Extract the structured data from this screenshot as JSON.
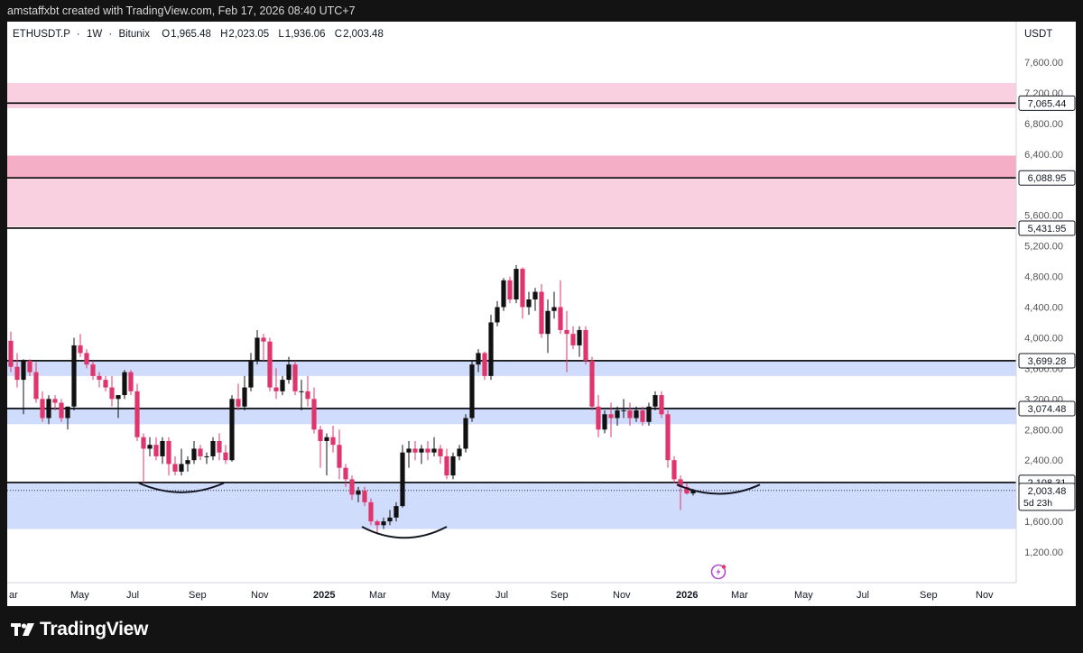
{
  "header": {
    "caption": "amstaffxbt created with TradingView.com, Feb 17, 2026 08:40 UTC+7"
  },
  "footer": {
    "brand": "TradingView",
    "logo_icon": "tradingview-logo-icon"
  },
  "chart_data": {
    "type": "candlestick",
    "symbol": "ETHUSDT.P",
    "interval": "1W",
    "exchange": "Bitunix",
    "ohlc_labels": {
      "o": "O",
      "h": "H",
      "l": "L",
      "c": "C"
    },
    "ohlc_values": {
      "o": "1,965.48",
      "h": "2,023.05",
      "l": "1,936.06",
      "c": "2,003.48"
    },
    "currency": "USDT",
    "y_axis": {
      "ticks": [
        "7,600.00",
        "7,200.00",
        "6,800.00",
        "6,400.00",
        "5,600.00",
        "5,200.00",
        "4,800.00",
        "4,400.00",
        "4,000.00",
        "3,600.00",
        "3,200.00",
        "2,800.00",
        "2,400.00",
        "1,600.00",
        "1,200.00"
      ],
      "tick_values": [
        7600,
        7200,
        6800,
        6400,
        5600,
        5200,
        4800,
        4400,
        4000,
        3600,
        3200,
        2800,
        2400,
        1600,
        1200
      ]
    },
    "x_axis": {
      "labels": [
        {
          "text": "ar",
          "bold": false
        },
        {
          "text": "May",
          "bold": false
        },
        {
          "text": "Jul",
          "bold": false
        },
        {
          "text": "Sep",
          "bold": false
        },
        {
          "text": "Nov",
          "bold": false
        },
        {
          "text": "2025",
          "bold": true
        },
        {
          "text": "Mar",
          "bold": false
        },
        {
          "text": "May",
          "bold": false
        },
        {
          "text": "Jul",
          "bold": false
        },
        {
          "text": "Sep",
          "bold": false
        },
        {
          "text": "Nov",
          "bold": false
        },
        {
          "text": "2026",
          "bold": true
        },
        {
          "text": "Mar",
          "bold": false
        },
        {
          "text": "May",
          "bold": false
        },
        {
          "text": "Jul",
          "bold": false
        },
        {
          "text": "Sep",
          "bold": false
        },
        {
          "text": "Nov",
          "bold": false
        }
      ]
    },
    "zones": [
      {
        "low": 7000,
        "high": 7330,
        "color": "#f8d0df"
      },
      {
        "low": 5450,
        "high": 6100,
        "color": "#f8d0df"
      },
      {
        "low": 6100,
        "high": 6380,
        "color": "#f4aec6"
      },
      {
        "low": 3500,
        "high": 3710,
        "color": "#cfdcfb"
      },
      {
        "low": 2870,
        "high": 3090,
        "color": "#cfdcfb"
      },
      {
        "low": 1500,
        "high": 2110,
        "color": "#cfdcfb"
      }
    ],
    "levels": [
      {
        "value": 7065.44,
        "label": "7,065.44"
      },
      {
        "value": 6088.95,
        "label": "6,088.95"
      },
      {
        "value": 5431.95,
        "label": "5,431.95"
      },
      {
        "value": 3699.28,
        "label": "3,699.28"
      },
      {
        "value": 3074.48,
        "label": "3,074.48"
      },
      {
        "value": 2108.31,
        "label": "2,108.31"
      }
    ],
    "last_price": {
      "value": 2003.48,
      "label": "2,003.48",
      "countdown": "5d 23h"
    },
    "colors": {
      "up": "#111111",
      "down": "#e0356c",
      "level": "#000000",
      "grid": "#e0e3eb",
      "axis_text": "#555555"
    },
    "candles": [
      [
        3960,
        4080,
        3550,
        3620
      ],
      [
        3620,
        3800,
        3350,
        3450
      ],
      [
        3450,
        3720,
        3000,
        3700
      ],
      [
        3700,
        3720,
        3500,
        3550
      ],
      [
        3550,
        3680,
        3150,
        3200
      ],
      [
        3200,
        3300,
        2900,
        2950
      ],
      [
        2950,
        3250,
        2870,
        3200
      ],
      [
        3200,
        3250,
        3050,
        3150
      ],
      [
        3150,
        3200,
        2900,
        2950
      ],
      [
        2950,
        3100,
        2800,
        3100
      ],
      [
        3100,
        4000,
        3050,
        3900
      ],
      [
        3900,
        4050,
        3750,
        3800
      ],
      [
        3800,
        3850,
        3600,
        3650
      ],
      [
        3650,
        3700,
        3450,
        3500
      ],
      [
        3500,
        3550,
        3350,
        3450
      ],
      [
        3450,
        3500,
        3300,
        3350
      ],
      [
        3350,
        3500,
        3100,
        3200
      ],
      [
        3200,
        3250,
        2950,
        3250
      ],
      [
        3250,
        3580,
        3200,
        3550
      ],
      [
        3550,
        3580,
        3250,
        3300
      ],
      [
        3300,
        3400,
        2650,
        2700
      ],
      [
        2700,
        2750,
        2100,
        2550
      ],
      [
        2550,
        2700,
        2450,
        2600
      ],
      [
        2600,
        2700,
        2400,
        2450
      ],
      [
        2450,
        2700,
        2350,
        2650
      ],
      [
        2650,
        2700,
        2200,
        2350
      ],
      [
        2350,
        2450,
        2200,
        2250
      ],
      [
        2250,
        2550,
        2200,
        2350
      ],
      [
        2350,
        2450,
        2250,
        2400
      ],
      [
        2400,
        2650,
        2350,
        2550
      ],
      [
        2550,
        2600,
        2400,
        2450
      ],
      [
        2450,
        2500,
        2350,
        2450
      ],
      [
        2450,
        2700,
        2400,
        2650
      ],
      [
        2650,
        2750,
        2400,
        2500
      ],
      [
        2500,
        2600,
        2350,
        2400
      ],
      [
        2400,
        3250,
        2380,
        3200
      ],
      [
        3200,
        3400,
        3050,
        3100
      ],
      [
        3100,
        3500,
        3050,
        3350
      ],
      [
        3350,
        3800,
        3300,
        3700
      ],
      [
        3700,
        4100,
        3650,
        4000
      ],
      [
        4000,
        4050,
        3700,
        3950
      ],
      [
        3950,
        4000,
        3300,
        3350
      ],
      [
        3350,
        3600,
        3200,
        3300
      ],
      [
        3300,
        3500,
        3250,
        3450
      ],
      [
        3450,
        3750,
        3400,
        3650
      ],
      [
        3650,
        3700,
        3250,
        3300
      ],
      [
        3300,
        3450,
        3050,
        3300
      ],
      [
        3300,
        3500,
        3100,
        3200
      ],
      [
        3200,
        3350,
        2750,
        2800
      ],
      [
        2800,
        2850,
        2300,
        2650
      ],
      [
        2650,
        2750,
        2200,
        2700
      ],
      [
        2700,
        2850,
        2500,
        2600
      ],
      [
        2600,
        2800,
        2150,
        2300
      ],
      [
        2300,
        2350,
        2050,
        2150
      ],
      [
        2150,
        2200,
        1880,
        1950
      ],
      [
        1950,
        2050,
        1850,
        2000
      ],
      [
        2000,
        2050,
        1800,
        1850
      ],
      [
        1850,
        1900,
        1550,
        1600
      ],
      [
        1600,
        1620,
        1450,
        1550
      ],
      [
        1550,
        1650,
        1500,
        1600
      ],
      [
        1600,
        1750,
        1550,
        1650
      ],
      [
        1650,
        1850,
        1600,
        1800
      ],
      [
        1800,
        2600,
        1780,
        2500
      ],
      [
        2500,
        2650,
        2300,
        2550
      ],
      [
        2550,
        2650,
        2400,
        2500
      ],
      [
        2500,
        2600,
        2350,
        2550
      ],
      [
        2550,
        2650,
        2400,
        2500
      ],
      [
        2500,
        2700,
        2450,
        2550
      ],
      [
        2550,
        2600,
        2350,
        2450
      ],
      [
        2450,
        2550,
        2150,
        2200
      ],
      [
        2200,
        2500,
        2150,
        2450
      ],
      [
        2450,
        2600,
        2400,
        2550
      ],
      [
        2550,
        3000,
        2500,
        2950
      ],
      [
        2950,
        3700,
        2900,
        3650
      ],
      [
        3650,
        3850,
        3550,
        3800
      ],
      [
        3800,
        3820,
        3450,
        3500
      ],
      [
        3500,
        4300,
        3450,
        4200
      ],
      [
        4200,
        4480,
        4150,
        4400
      ],
      [
        4400,
        4780,
        4350,
        4750
      ],
      [
        4750,
        4800,
        4450,
        4500
      ],
      [
        4500,
        4950,
        4450,
        4900
      ],
      [
        4900,
        4920,
        4250,
        4400
      ],
      [
        4400,
        4600,
        4300,
        4500
      ],
      [
        4500,
        4650,
        4350,
        4600
      ],
      [
        4600,
        4700,
        4000,
        4050
      ],
      [
        4050,
        4500,
        3800,
        4350
      ],
      [
        4350,
        4600,
        4250,
        4400
      ],
      [
        4400,
        4750,
        4050,
        4100
      ],
      [
        4100,
        4350,
        3550,
        4050
      ],
      [
        4050,
        4150,
        3850,
        3900
      ],
      [
        3900,
        4150,
        3750,
        4100
      ],
      [
        4100,
        4150,
        3650,
        3700
      ],
      [
        3700,
        3750,
        3050,
        3100
      ],
      [
        3100,
        3250,
        2700,
        2800
      ],
      [
        2800,
        3050,
        2750,
        3000
      ],
      [
        3000,
        3150,
        2700,
        2950
      ],
      [
        2950,
        3100,
        2850,
        3050
      ],
      [
        3050,
        3200,
        2950,
        3050
      ],
      [
        3050,
        3150,
        2850,
        2950
      ],
      [
        2950,
        3100,
        2900,
        3050
      ],
      [
        3050,
        3100,
        2850,
        2900
      ],
      [
        2900,
        3150,
        2850,
        3100
      ],
      [
        3100,
        3300,
        3050,
        3250
      ],
      [
        3250,
        3300,
        2950,
        3000
      ],
      [
        3000,
        3050,
        2300,
        2400
      ],
      [
        2400,
        2450,
        2100,
        2150
      ],
      [
        2150,
        2200,
        1750,
        2050
      ],
      [
        2050,
        2100,
        1950,
        1965
      ],
      [
        1965.48,
        2023.05,
        1936.06,
        2003.48
      ]
    ]
  }
}
